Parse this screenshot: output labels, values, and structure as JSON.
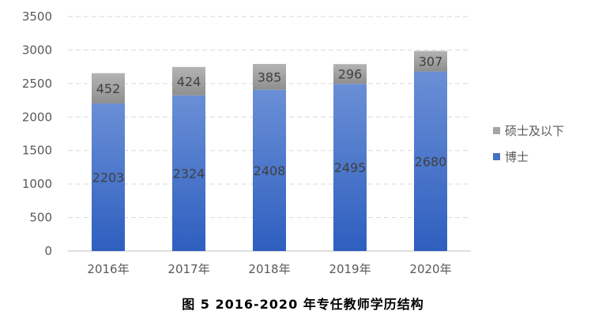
{
  "caption": "图 5  2016-2020 年专任教师学历结构",
  "chart_data": {
    "type": "bar",
    "stacked": true,
    "categories": [
      "2016年",
      "2017年",
      "2018年",
      "2019年",
      "2020年"
    ],
    "series": [
      {
        "name": "博士",
        "values": [
          2203,
          2324,
          2408,
          2495,
          2680
        ],
        "color": "#4472C4"
      },
      {
        "name": "硕士及以下",
        "values": [
          452,
          424,
          385,
          296,
          307
        ],
        "color": "#A5A5A5"
      }
    ],
    "y_ticks": [
      "0",
      "500",
      "1000",
      "1500",
      "2000",
      "2500",
      "3000",
      "3500"
    ],
    "ylim": [
      0,
      3500
    ],
    "grid": true,
    "legend": "right",
    "title": "",
    "xlabel": "",
    "ylabel": ""
  }
}
